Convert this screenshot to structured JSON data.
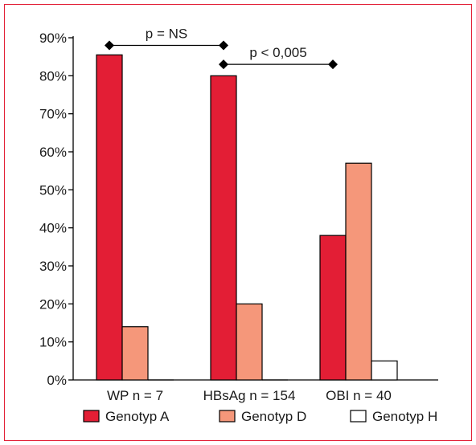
{
  "chart_data": {
    "type": "bar",
    "categories": [
      "WP n = 7",
      "HBsAg n = 154",
      "OBI n = 40"
    ],
    "series": [
      {
        "name": "Genotyp A",
        "values": [
          85.5,
          80,
          38
        ],
        "color": "#e31e35"
      },
      {
        "name": "Genotyp D",
        "values": [
          14,
          20,
          57
        ],
        "color": "#f5977a"
      },
      {
        "name": "Genotyp H",
        "values": [
          0,
          0,
          5
        ],
        "color": "#ffffff"
      }
    ],
    "ylim": [
      0,
      90
    ],
    "yticks": [
      "0%",
      "10%",
      "20%",
      "30%",
      "40%",
      "50%",
      "60%",
      "70%",
      "80%",
      "90%"
    ],
    "grid": false,
    "legend_position": "bottom",
    "annotations": [
      {
        "label": "p = NS",
        "from_category": 0,
        "to_category": 1,
        "y": 88
      },
      {
        "label": "p < 0,005",
        "from_category": 1,
        "to_category": 2,
        "y": 83
      }
    ]
  },
  "colors": {
    "frame": "#e21f36",
    "axis": "#000000"
  }
}
